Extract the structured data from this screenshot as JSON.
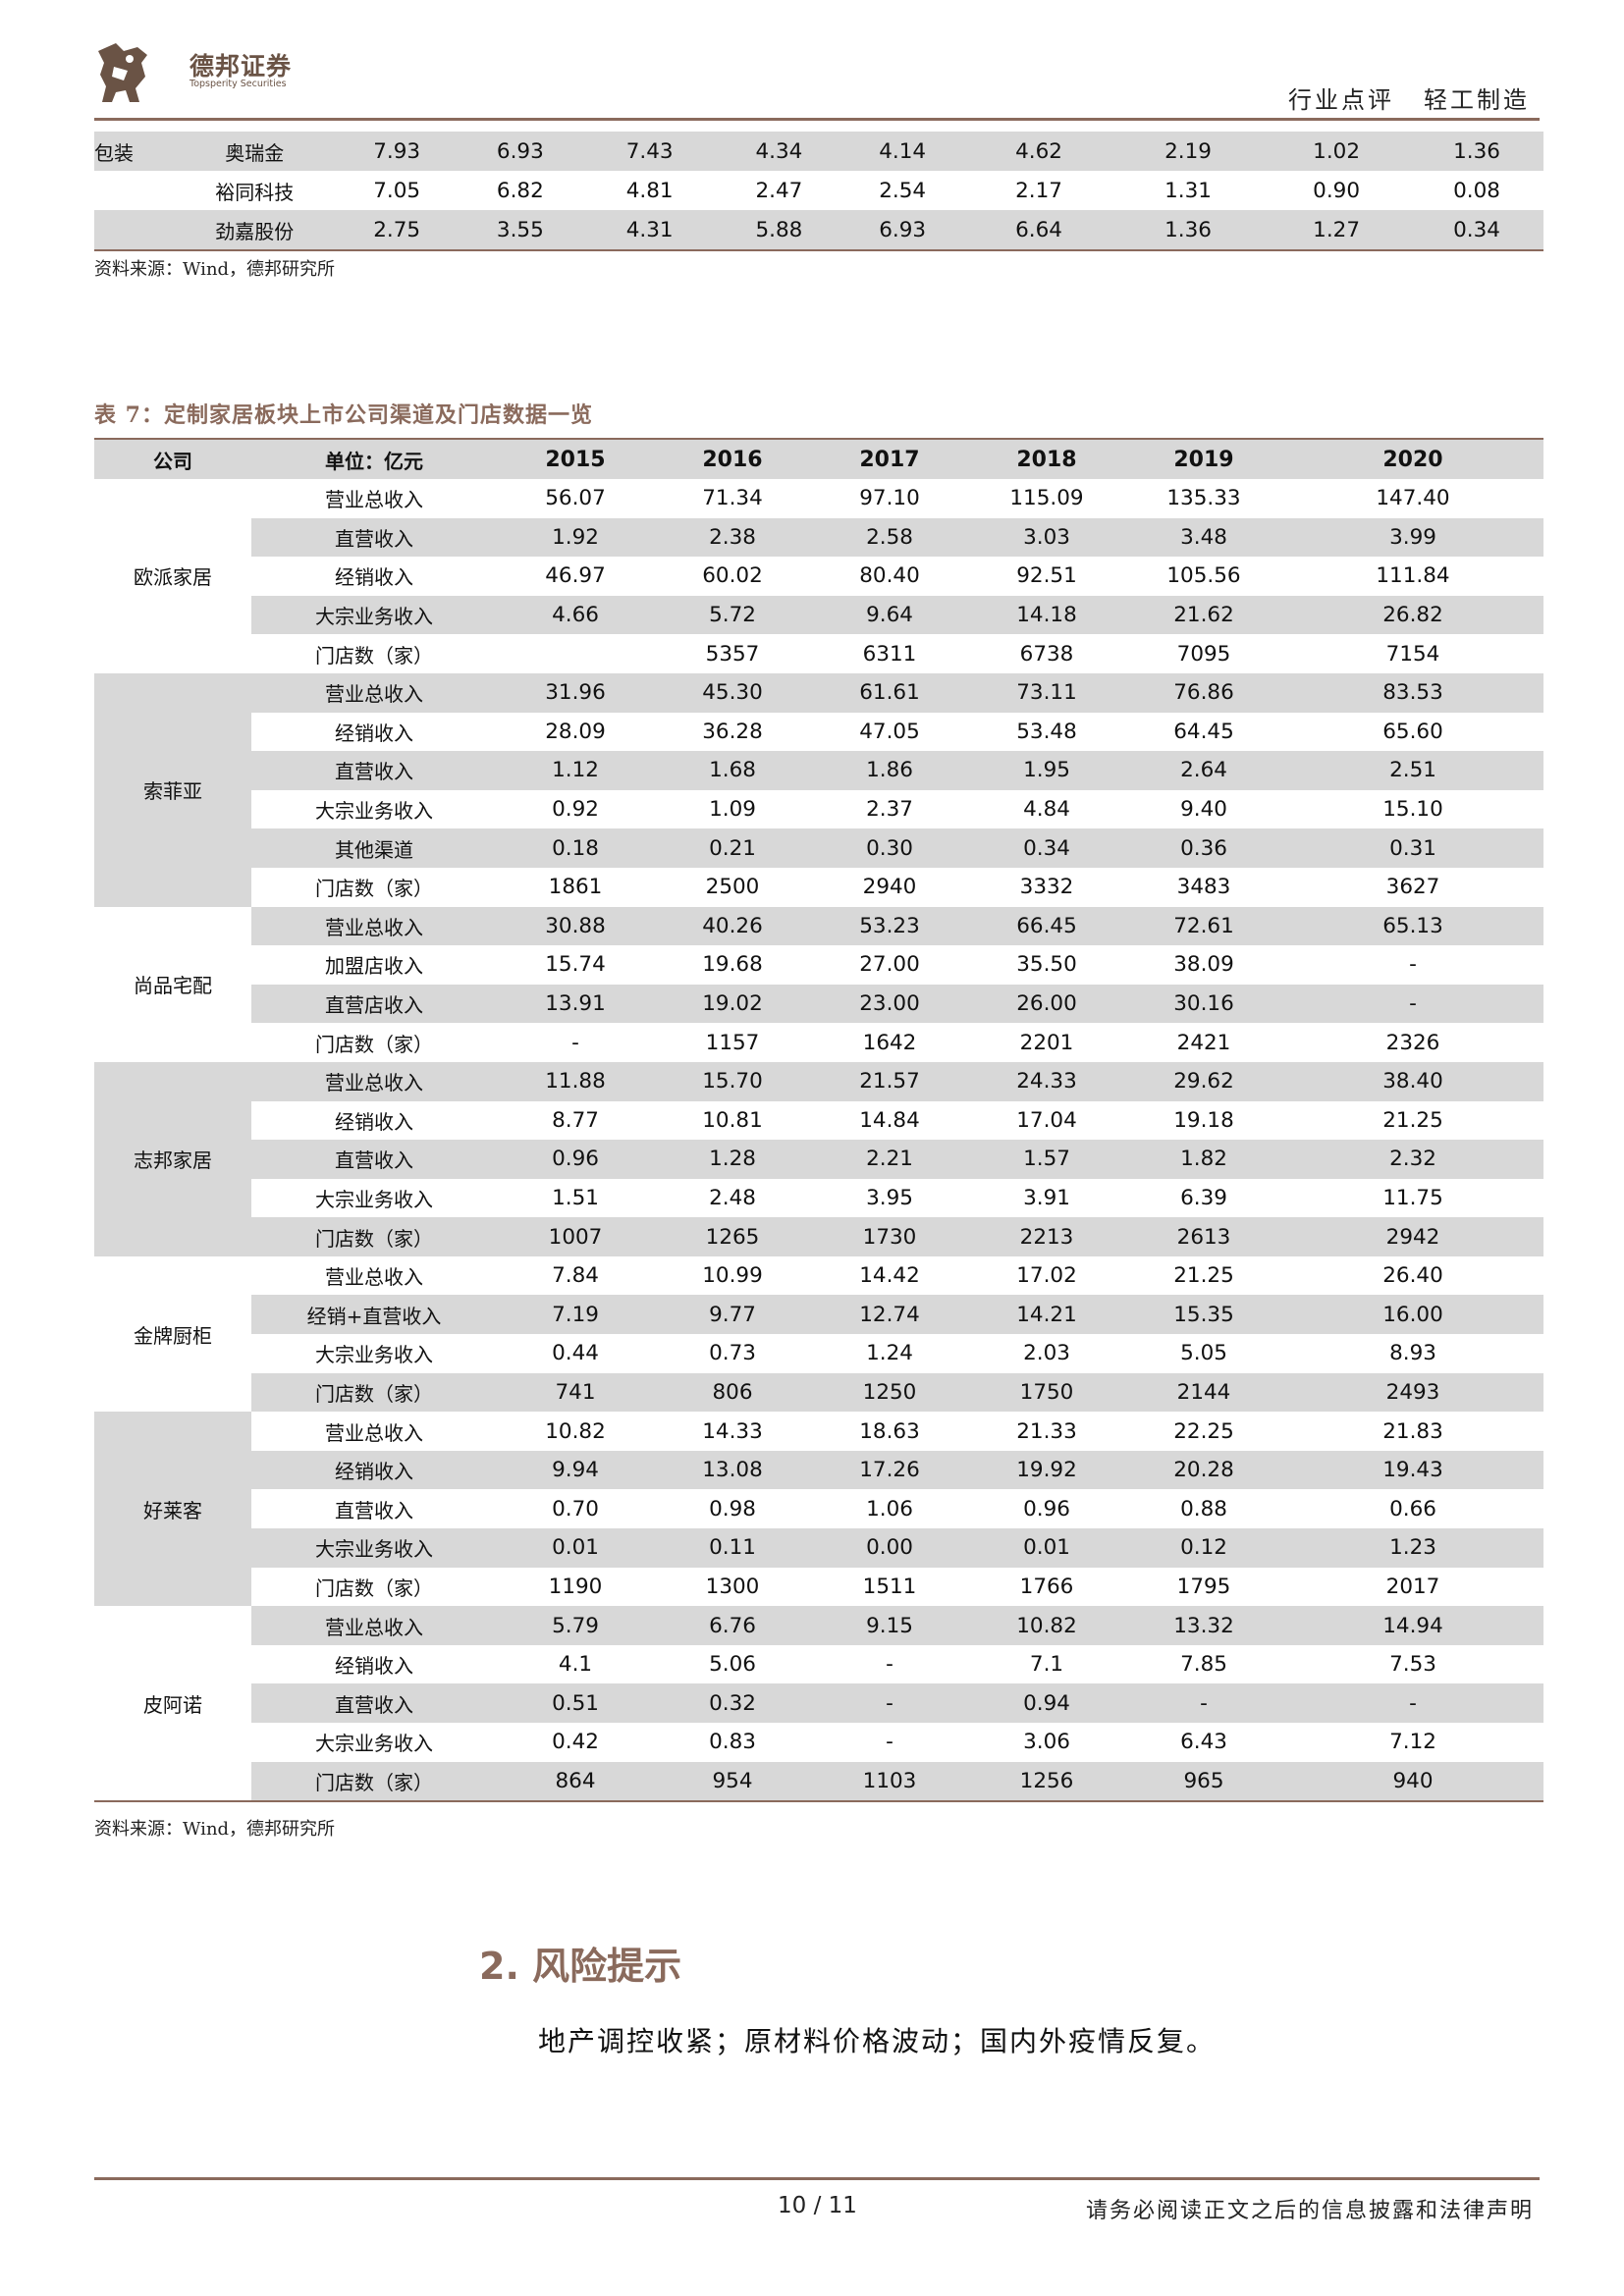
{
  "header": {
    "brand_cn": "德邦证券",
    "brand_en": "Topsperity Securities",
    "report_type": "行业点评",
    "industry": "轻工制造",
    "logo_icon": "dog-logo-icon",
    "accent_color": "#8a6a5c"
  },
  "top_table": {
    "category": "包装",
    "rows": [
      {
        "company": "奥瑞金",
        "values": [
          "7.93",
          "6.93",
          "7.43",
          "4.34",
          "4.14",
          "4.62",
          "2.19",
          "1.02",
          "1.36"
        ]
      },
      {
        "company": "裕同科技",
        "values": [
          "7.05",
          "6.82",
          "4.81",
          "2.47",
          "2.54",
          "2.17",
          "1.31",
          "0.90",
          "0.08"
        ]
      },
      {
        "company": "劲嘉股份",
        "values": [
          "2.75",
          "3.55",
          "4.31",
          "5.88",
          "6.93",
          "6.64",
          "1.36",
          "1.27",
          "0.34"
        ]
      }
    ],
    "source": "资料来源：Wind，德邦研究所"
  },
  "table7": {
    "caption": "表 7：定制家居板块上市公司渠道及门店数据一览",
    "headers": [
      "公司",
      "单位：亿元",
      "2015",
      "2016",
      "2017",
      "2018",
      "2019",
      "2020"
    ],
    "groups": [
      {
        "company": "欧派家居",
        "rows": [
          {
            "label": "营业总收入",
            "values": [
              "56.07",
              "71.34",
              "97.10",
              "115.09",
              "135.33",
              "147.40"
            ]
          },
          {
            "label": "直营收入",
            "values": [
              "1.92",
              "2.38",
              "2.58",
              "3.03",
              "3.48",
              "3.99"
            ]
          },
          {
            "label": "经销收入",
            "values": [
              "46.97",
              "60.02",
              "80.40",
              "92.51",
              "105.56",
              "111.84"
            ]
          },
          {
            "label": "大宗业务收入",
            "values": [
              "4.66",
              "5.72",
              "9.64",
              "14.18",
              "21.62",
              "26.82"
            ]
          },
          {
            "label": "门店数（家）",
            "values": [
              "",
              "5357",
              "6311",
              "6738",
              "7095",
              "7154"
            ]
          }
        ]
      },
      {
        "company": "索菲亚",
        "rows": [
          {
            "label": "营业总收入",
            "values": [
              "31.96",
              "45.30",
              "61.61",
              "73.11",
              "76.86",
              "83.53"
            ]
          },
          {
            "label": "经销收入",
            "values": [
              "28.09",
              "36.28",
              "47.05",
              "53.48",
              "64.45",
              "65.60"
            ]
          },
          {
            "label": "直营收入",
            "values": [
              "1.12",
              "1.68",
              "1.86",
              "1.95",
              "2.64",
              "2.51"
            ]
          },
          {
            "label": "大宗业务收入",
            "values": [
              "0.92",
              "1.09",
              "2.37",
              "4.84",
              "9.40",
              "15.10"
            ]
          },
          {
            "label": "其他渠道",
            "values": [
              "0.18",
              "0.21",
              "0.30",
              "0.34",
              "0.36",
              "0.31"
            ]
          },
          {
            "label": "门店数（家）",
            "values": [
              "1861",
              "2500",
              "2940",
              "3332",
              "3483",
              "3627"
            ]
          }
        ]
      },
      {
        "company": "尚品宅配",
        "rows": [
          {
            "label": "营业总收入",
            "values": [
              "30.88",
              "40.26",
              "53.23",
              "66.45",
              "72.61",
              "65.13"
            ]
          },
          {
            "label": "加盟店收入",
            "values": [
              "15.74",
              "19.68",
              "27.00",
              "35.50",
              "38.09",
              "-"
            ]
          },
          {
            "label": "直营店收入",
            "values": [
              "13.91",
              "19.02",
              "23.00",
              "26.00",
              "30.16",
              "-"
            ]
          },
          {
            "label": "门店数（家）",
            "values": [
              "-",
              "1157",
              "1642",
              "2201",
              "2421",
              "2326"
            ]
          }
        ]
      },
      {
        "company": "志邦家居",
        "rows": [
          {
            "label": "营业总收入",
            "values": [
              "11.88",
              "15.70",
              "21.57",
              "24.33",
              "29.62",
              "38.40"
            ]
          },
          {
            "label": "经销收入",
            "values": [
              "8.77",
              "10.81",
              "14.84",
              "17.04",
              "19.18",
              "21.25"
            ]
          },
          {
            "label": "直营收入",
            "values": [
              "0.96",
              "1.28",
              "2.21",
              "1.57",
              "1.82",
              "2.32"
            ]
          },
          {
            "label": "大宗业务收入",
            "values": [
              "1.51",
              "2.48",
              "3.95",
              "3.91",
              "6.39",
              "11.75"
            ]
          },
          {
            "label": "门店数（家）",
            "values": [
              "1007",
              "1265",
              "1730",
              "2213",
              "2613",
              "2942"
            ]
          }
        ]
      },
      {
        "company": "金牌厨柜",
        "rows": [
          {
            "label": "营业总收入",
            "values": [
              "7.84",
              "10.99",
              "14.42",
              "17.02",
              "21.25",
              "26.40"
            ]
          },
          {
            "label": "经销+直营收入",
            "values": [
              "7.19",
              "9.77",
              "12.74",
              "14.21",
              "15.35",
              "16.00"
            ]
          },
          {
            "label": "大宗业务收入",
            "values": [
              "0.44",
              "0.73",
              "1.24",
              "2.03",
              "5.05",
              "8.93"
            ]
          },
          {
            "label": "门店数（家）",
            "values": [
              "741",
              "806",
              "1250",
              "1750",
              "2144",
              "2493"
            ]
          }
        ]
      },
      {
        "company": "好莱客",
        "rows": [
          {
            "label": "营业总收入",
            "values": [
              "10.82",
              "14.33",
              "18.63",
              "21.33",
              "22.25",
              "21.83"
            ]
          },
          {
            "label": "经销收入",
            "values": [
              "9.94",
              "13.08",
              "17.26",
              "19.92",
              "20.28",
              "19.43"
            ]
          },
          {
            "label": "直营收入",
            "values": [
              "0.70",
              "0.98",
              "1.06",
              "0.96",
              "0.88",
              "0.66"
            ]
          },
          {
            "label": "大宗业务收入",
            "values": [
              "0.01",
              "0.11",
              "0.00",
              "0.01",
              "0.12",
              "1.23"
            ]
          },
          {
            "label": "门店数（家）",
            "values": [
              "1190",
              "1300",
              "1511",
              "1766",
              "1795",
              "2017"
            ]
          }
        ]
      },
      {
        "company": "皮阿诺",
        "rows": [
          {
            "label": "营业总收入",
            "values": [
              "5.79",
              "6.76",
              "9.15",
              "10.82",
              "13.32",
              "14.94"
            ]
          },
          {
            "label": "经销收入",
            "values": [
              "4.1",
              "5.06",
              "-",
              "7.1",
              "7.85",
              "7.53"
            ]
          },
          {
            "label": "直营收入",
            "values": [
              "0.51",
              "0.32",
              "-",
              "0.94",
              "-",
              "-"
            ]
          },
          {
            "label": "大宗业务收入",
            "values": [
              "0.42",
              "0.83",
              "-",
              "3.06",
              "6.43",
              "7.12"
            ]
          },
          {
            "label": "门店数（家）",
            "values": [
              "864",
              "954",
              "1103",
              "1256",
              "965",
              "940"
            ]
          }
        ]
      }
    ],
    "source": "资料来源：Wind，德邦研究所"
  },
  "section": {
    "number": "2.",
    "title": "风险提示",
    "body": "地产调控收紧；原材料价格波动；国内外疫情反复。"
  },
  "footer": {
    "page": "10 / 11",
    "disclaimer": "请务必阅读正文之后的信息披露和法律声明"
  }
}
